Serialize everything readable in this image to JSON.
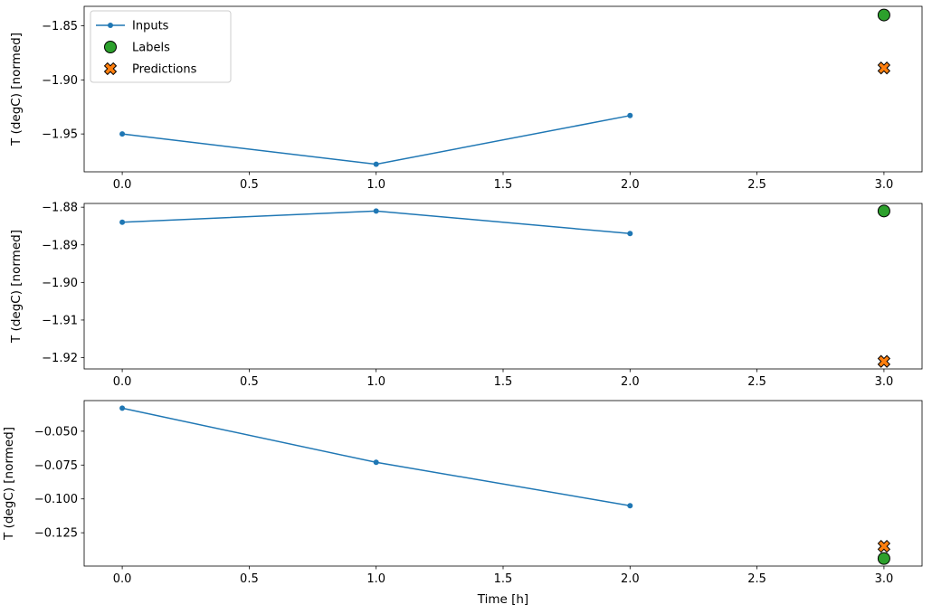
{
  "figure": {
    "background": "#ffffff",
    "axis_color": "#000000"
  },
  "legend": {
    "position": "upper-left",
    "items": [
      {
        "label": "Inputs",
        "marker": "line-dot",
        "color": "#1f77b4"
      },
      {
        "label": "Labels",
        "marker": "circle",
        "color": "#2ca02c"
      },
      {
        "label": "Predictions",
        "marker": "x",
        "color": "#ff7f0e"
      }
    ]
  },
  "chart_data": [
    {
      "type": "line",
      "title": "",
      "xlabel": "",
      "ylabel": "T (degC) [normed]",
      "xlim": [
        -0.15,
        3.15
      ],
      "ylim": [
        -1.985,
        -1.832
      ],
      "xticks": [
        0.0,
        0.5,
        1.0,
        1.5,
        2.0,
        2.5,
        3.0
      ],
      "xtick_labels": [
        "0.0",
        "0.5",
        "1.0",
        "1.5",
        "2.0",
        "2.5",
        "3.0"
      ],
      "yticks": [
        -1.85,
        -1.9,
        -1.95
      ],
      "ytick_labels": [
        "−1.85",
        "−1.90",
        "−1.95"
      ],
      "series": [
        {
          "name": "Inputs",
          "marker": "line-dot",
          "color": "#1f77b4",
          "x": [
            0,
            1,
            2
          ],
          "y": [
            -1.95,
            -1.978,
            -1.933
          ]
        },
        {
          "name": "Labels",
          "marker": "circle",
          "color": "#2ca02c",
          "x": [
            3
          ],
          "y": [
            -1.84
          ]
        },
        {
          "name": "Predictions",
          "marker": "x",
          "color": "#ff7f0e",
          "x": [
            3
          ],
          "y": [
            -1.889
          ]
        }
      ]
    },
    {
      "type": "line",
      "title": "",
      "xlabel": "",
      "ylabel": "T (degC) [normed]",
      "xlim": [
        -0.15,
        3.15
      ],
      "ylim": [
        -1.923,
        -1.879
      ],
      "xticks": [
        0.0,
        0.5,
        1.0,
        1.5,
        2.0,
        2.5,
        3.0
      ],
      "xtick_labels": [
        "0.0",
        "0.5",
        "1.0",
        "1.5",
        "2.0",
        "2.5",
        "3.0"
      ],
      "yticks": [
        -1.88,
        -1.89,
        -1.9,
        -1.91,
        -1.92
      ],
      "ytick_labels": [
        "−1.88",
        "−1.89",
        "−1.90",
        "−1.91",
        "−1.92"
      ],
      "series": [
        {
          "name": "Inputs",
          "marker": "line-dot",
          "color": "#1f77b4",
          "x": [
            0,
            1,
            2
          ],
          "y": [
            -1.884,
            -1.881,
            -1.887
          ]
        },
        {
          "name": "Labels",
          "marker": "circle",
          "color": "#2ca02c",
          "x": [
            3
          ],
          "y": [
            -1.881
          ]
        },
        {
          "name": "Predictions",
          "marker": "x",
          "color": "#ff7f0e",
          "x": [
            3
          ],
          "y": [
            -1.921
          ]
        }
      ]
    },
    {
      "type": "line",
      "title": "",
      "xlabel": "Time [h]",
      "ylabel": "T (degC) [normed]",
      "xlim": [
        -0.15,
        3.15
      ],
      "ylim": [
        -0.1496,
        -0.0274
      ],
      "xticks": [
        0.0,
        0.5,
        1.0,
        1.5,
        2.0,
        2.5,
        3.0
      ],
      "xtick_labels": [
        "0.0",
        "0.5",
        "1.0",
        "1.5",
        "2.0",
        "2.5",
        "3.0"
      ],
      "yticks": [
        -0.05,
        -0.075,
        -0.1,
        -0.125
      ],
      "ytick_labels": [
        "−0.050",
        "−0.075",
        "−0.100",
        "−0.125"
      ],
      "series": [
        {
          "name": "Inputs",
          "marker": "line-dot",
          "color": "#1f77b4",
          "x": [
            0,
            1,
            2
          ],
          "y": [
            -0.033,
            -0.073,
            -0.105
          ]
        },
        {
          "name": "Labels",
          "marker": "circle",
          "color": "#2ca02c",
          "x": [
            3
          ],
          "y": [
            -0.144
          ]
        },
        {
          "name": "Predictions",
          "marker": "x",
          "color": "#ff7f0e",
          "x": [
            3
          ],
          "y": [
            -0.135
          ]
        }
      ]
    }
  ]
}
